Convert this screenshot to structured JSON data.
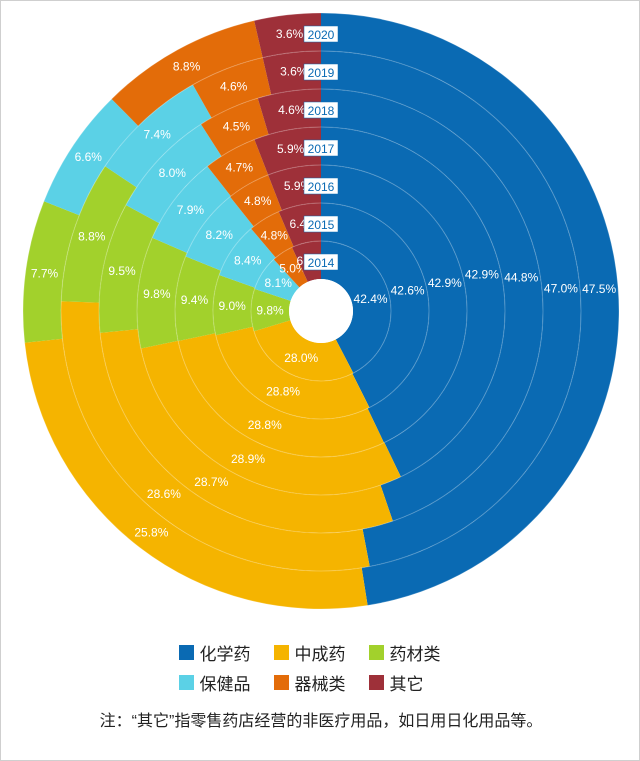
{
  "chart_data": {
    "type": "radial_stacked_rings",
    "years": [
      "2020",
      "2019",
      "2018",
      "2017",
      "2016",
      "2015",
      "2014"
    ],
    "series": [
      {
        "name": "化学药",
        "color": "#0a6ab3",
        "values": [
          47.5,
          47.0,
          44.8,
          42.9,
          42.9,
          42.6,
          42.4
        ]
      },
      {
        "name": "中成药",
        "color": "#f5b400",
        "values": [
          25.8,
          28.6,
          28.7,
          28.9,
          28.8,
          28.8,
          28.0
        ]
      },
      {
        "name": "药材类",
        "color": "#a2d12c",
        "values": [
          7.7,
          8.8,
          9.5,
          9.8,
          9.4,
          9.0,
          9.8
        ]
      },
      {
        "name": "保健品",
        "color": "#5bd1e6",
        "values": [
          6.6,
          7.4,
          8.0,
          7.9,
          8.2,
          8.4,
          8.1
        ]
      },
      {
        "name": "器械类",
        "color": "#e36c09",
        "values": [
          8.8,
          4.6,
          4.5,
          4.7,
          4.8,
          4.8,
          5.0
        ]
      },
      {
        "name": "其它",
        "color": "#9e3039",
        "values": [
          3.6,
          3.6,
          4.6,
          5.9,
          5.9,
          6.4,
          6.8
        ]
      }
    ],
    "value_labels": [
      [
        "47.5%",
        "25.8%",
        "7.7%",
        "6.6%",
        "8.8%",
        "3.6%"
      ],
      [
        "47.0%",
        "28.6%",
        "8.8%",
        "7.4%",
        "4.6%",
        "3.6%"
      ],
      [
        "44.8%",
        "28.7%",
        "9.5%",
        "8.0%",
        "4.5%",
        "4.6%"
      ],
      [
        "42.9%",
        "28.9%",
        "9.8%",
        "7.9%",
        "4.7%",
        "5.9%"
      ],
      [
        "42.9%",
        "28.8%",
        "9.4%",
        "8.2%",
        "4.8%",
        "5.9%"
      ],
      [
        "42.6%",
        "28.8%",
        "9.0%",
        "8.4%",
        "4.8%",
        "6.4%"
      ],
      [
        "42.4%",
        "28.0%",
        "9.8%",
        "8.1%",
        "5.0%",
        "6.8%"
      ]
    ]
  },
  "legend": [
    {
      "label": "化学药",
      "color": "#0a6ab3"
    },
    {
      "label": "中成药",
      "color": "#f5b400"
    },
    {
      "label": "药材类",
      "color": "#a2d12c"
    },
    {
      "label": "保健品",
      "color": "#5bd1e6"
    },
    {
      "label": "器械类",
      "color": "#e36c09"
    },
    {
      "label": "其它",
      "color": "#9e3039"
    }
  ],
  "note": "注：“其它”指零售药店经营的非医疗用品，如日用日化用品等。"
}
